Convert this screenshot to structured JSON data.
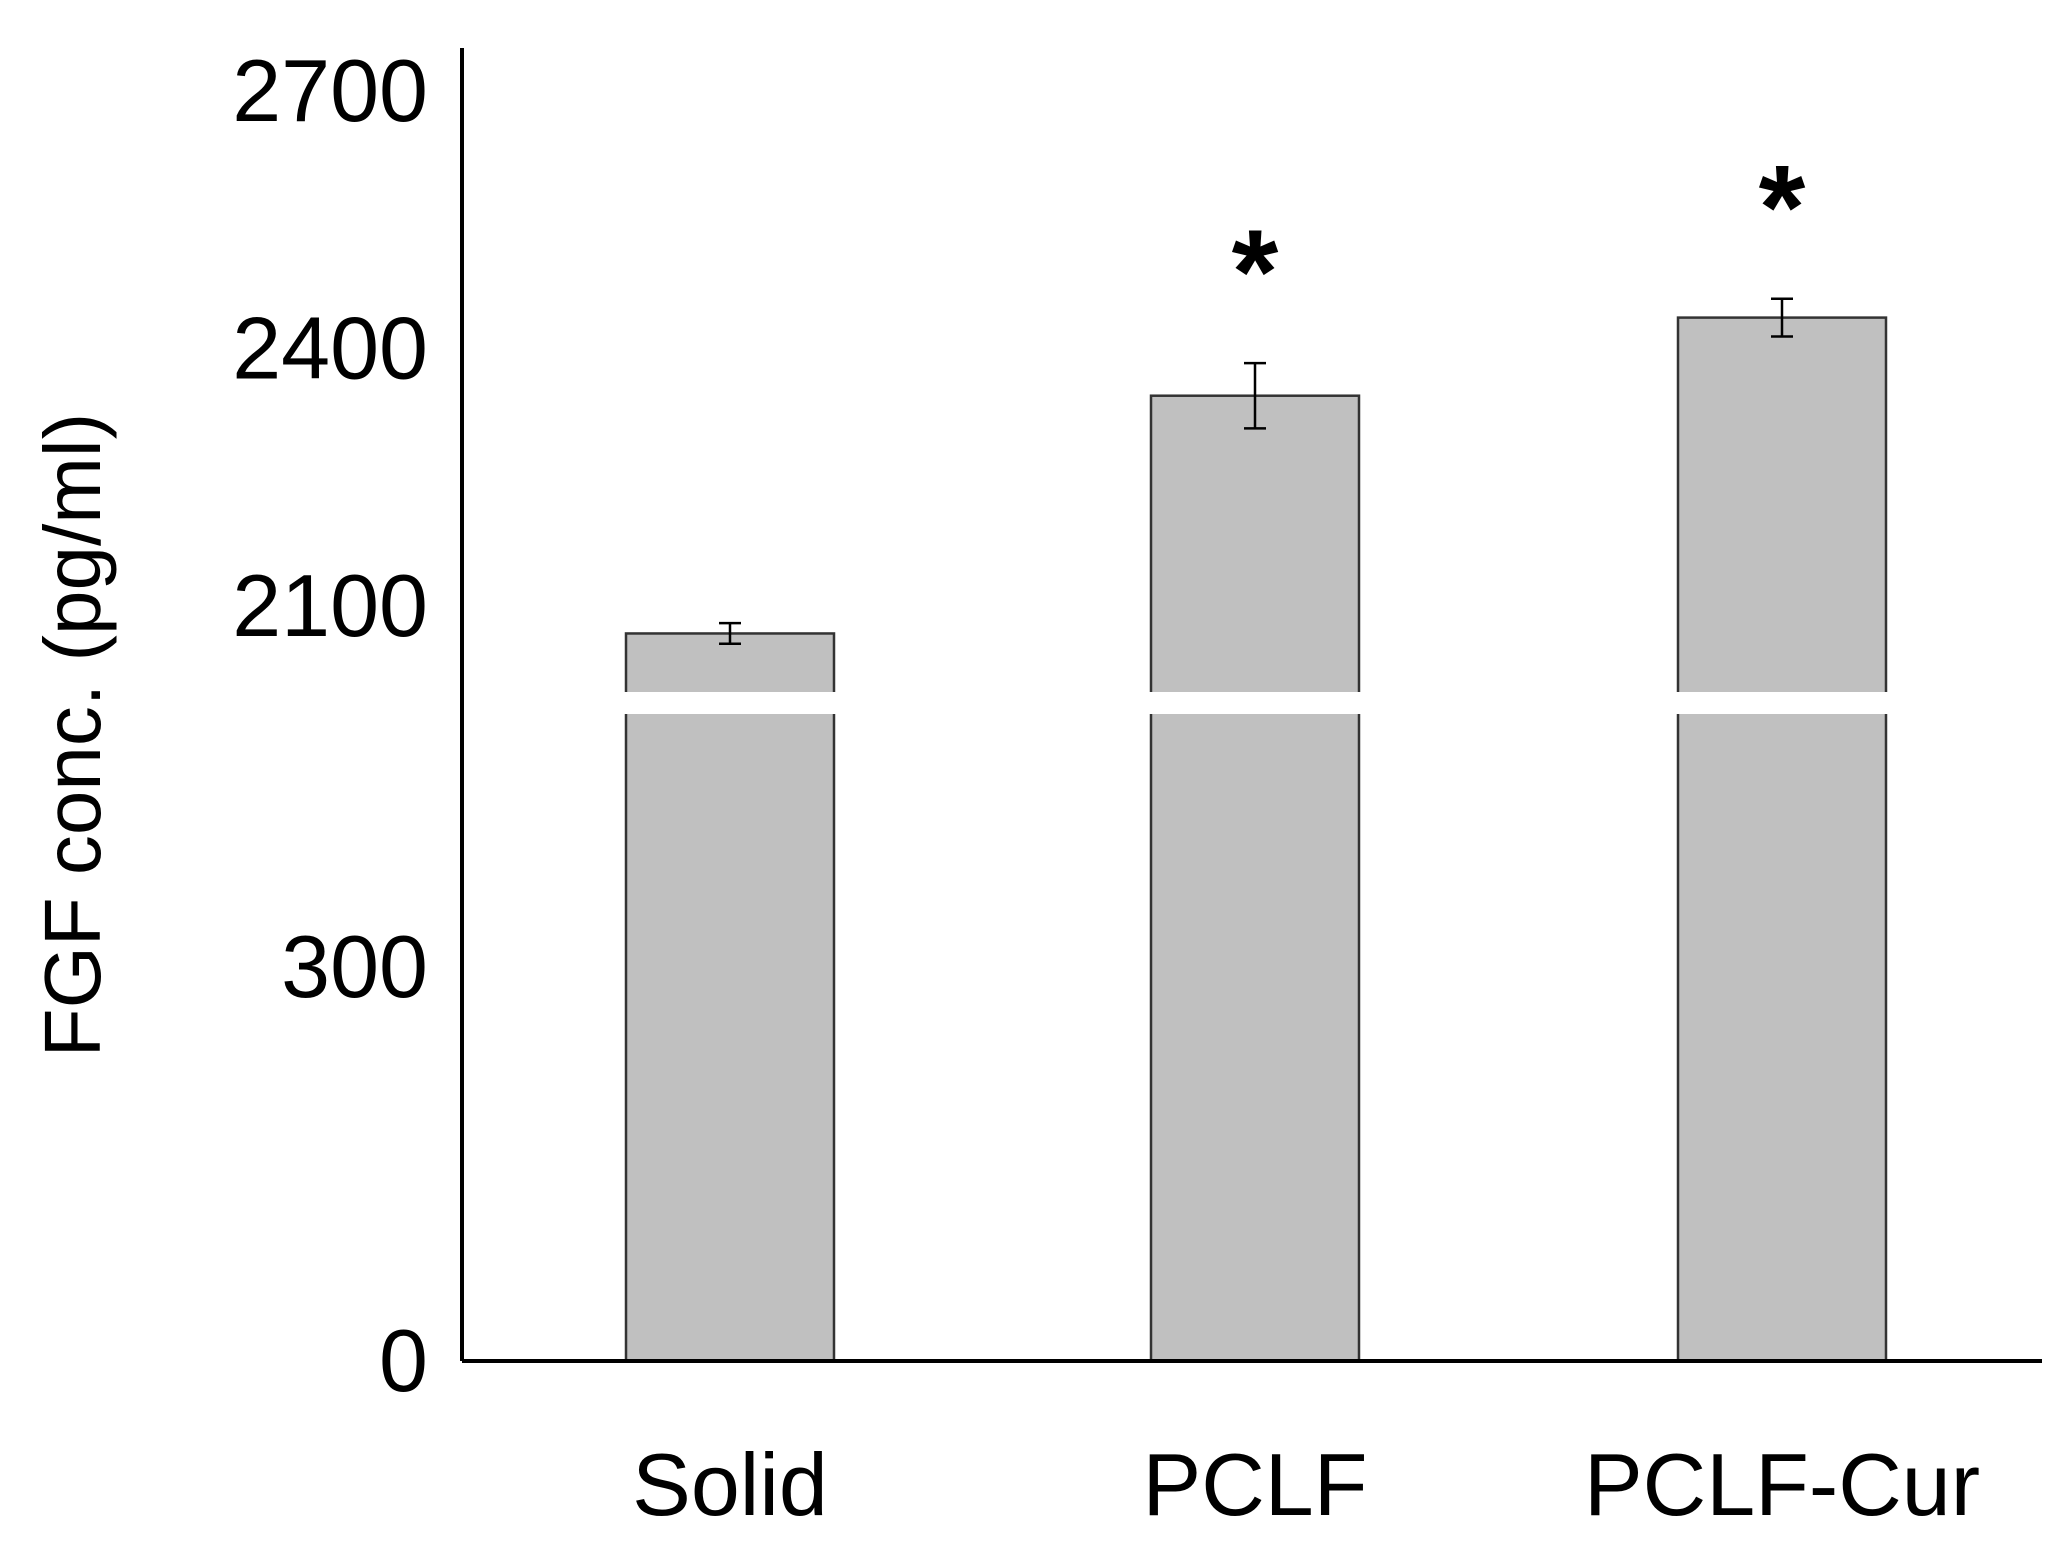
{
  "chart_data": {
    "type": "bar",
    "categories": [
      "Solid",
      "PCLF",
      "PCLF-Cur"
    ],
    "values": [
      2068,
      2345,
      2436
    ],
    "error": [
      12,
      38,
      22
    ],
    "significance": [
      "",
      "*",
      "*"
    ],
    "ylabel": "FGF conc. (pg/ml)",
    "xlabel": "",
    "yticks": [
      "0",
      "300",
      "2100",
      "2400",
      "2700"
    ],
    "yaxis_break": {
      "segments": [
        [
          0,
          600
        ],
        [
          2000,
          2700
        ]
      ]
    },
    "colors": {
      "bar_fill": "#c0c0c0",
      "bar_stroke": "#333333",
      "axis": "#000000",
      "break_gap": "#ffffff"
    }
  }
}
